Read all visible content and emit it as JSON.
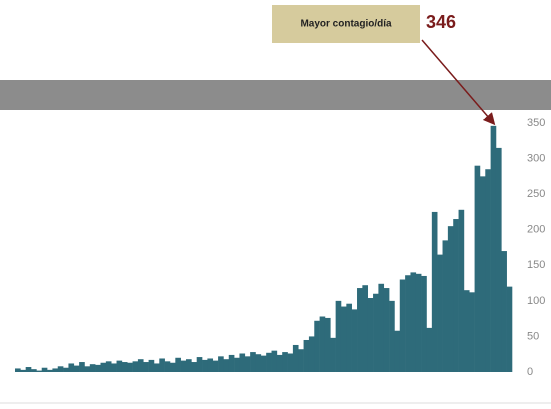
{
  "chart_data": {
    "type": "bar",
    "values": [
      5,
      3,
      7,
      4,
      2,
      6,
      3,
      5,
      8,
      6,
      12,
      9,
      14,
      8,
      11,
      10,
      13,
      15,
      12,
      16,
      14,
      13,
      15,
      18,
      14,
      17,
      12,
      19,
      15,
      13,
      20,
      16,
      18,
      14,
      21,
      17,
      19,
      16,
      22,
      18,
      24,
      20,
      26,
      22,
      28,
      25,
      23,
      27,
      30,
      24,
      28,
      26,
      38,
      32,
      45,
      50,
      72,
      78,
      76,
      48,
      100,
      92,
      96,
      88,
      118,
      122,
      104,
      110,
      124,
      118,
      100,
      58,
      130,
      136,
      140,
      138,
      135,
      62,
      225,
      165,
      185,
      205,
      215,
      228,
      115,
      112,
      290,
      275,
      285,
      346,
      315,
      170,
      120
    ],
    "color": "#2e6b7a",
    "ylim": [
      0,
      350
    ],
    "yticks": [
      0,
      50,
      100,
      150,
      200,
      250,
      300,
      350
    ],
    "grid": false,
    "annotations": [
      {
        "text": "Mayor contagio/día",
        "value": 346
      }
    ]
  }
}
